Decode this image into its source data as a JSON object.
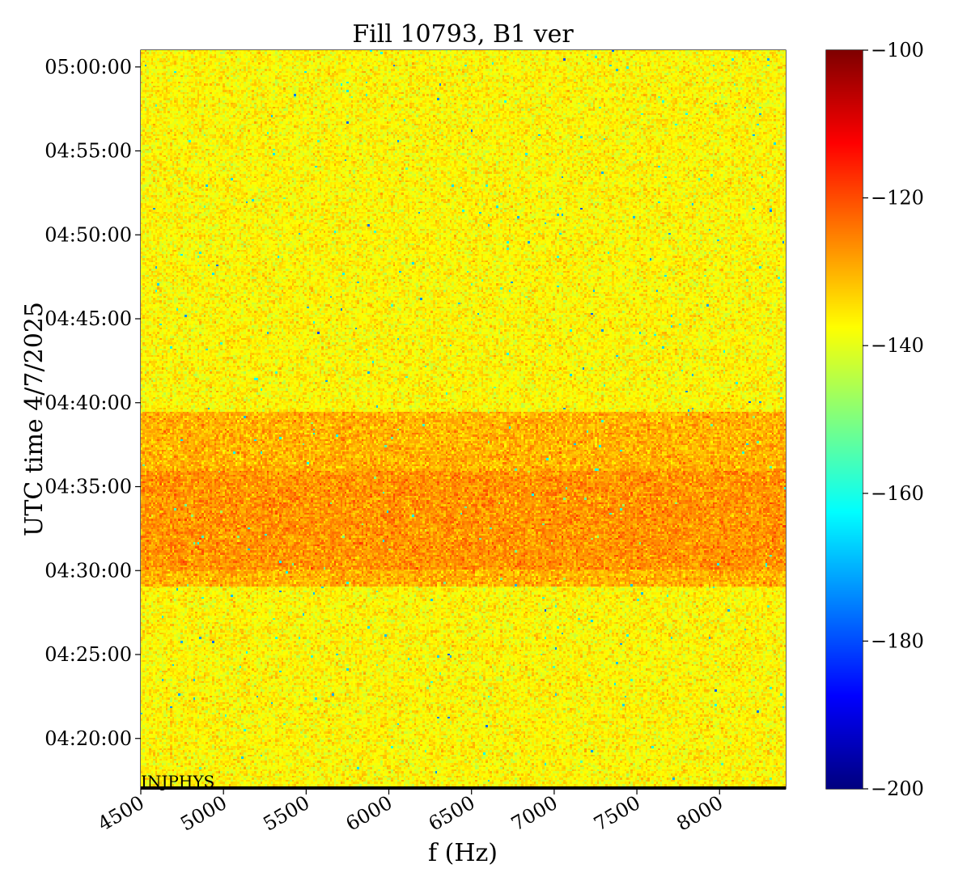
{
  "chart_data": {
    "type": "heatmap",
    "title": "Fill 10793, B1 ver",
    "xlabel": "f (Hz)",
    "ylabel": "UTC time 4/7/2025",
    "xlim": [
      4500,
      8400
    ],
    "ylim": [
      "04:17:00",
      "05:01:00"
    ],
    "x_ticks": [
      4500,
      5000,
      5500,
      6000,
      6500,
      7000,
      7500,
      8000
    ],
    "x_tick_labels": [
      "4500",
      "5000",
      "5500",
      "6000",
      "6500",
      "7000",
      "7500",
      "8000"
    ],
    "y_ticks": [
      "04:20:00",
      "04:25:00",
      "04:30:00",
      "04:35:00",
      "04:40:00",
      "04:45:00",
      "04:50:00",
      "04:55:00",
      "05:00:00"
    ],
    "y_tick_labels": [
      "04:20:00",
      "04:25:00",
      "04:30:00",
      "04:35:00",
      "04:40:00",
      "04:45:00",
      "04:50:00",
      "04:55:00",
      "05:00:00"
    ],
    "colorbar": {
      "colormap": "jet",
      "range": [
        -200,
        -100
      ],
      "ticks": [
        -100,
        -120,
        -140,
        -160,
        -180,
        -200
      ],
      "tick_labels": [
        "−100",
        "−120",
        "−140",
        "−160",
        "−180",
        "−200"
      ]
    },
    "background_level": -137,
    "regions": [
      {
        "from": "04:17:00",
        "to": "04:29:00",
        "level": -137
      },
      {
        "from": "04:29:00",
        "to": "04:30:00",
        "level": -130
      },
      {
        "from": "04:30:00",
        "to": "04:36:00",
        "level": -127
      },
      {
        "from": "04:36:00",
        "to": "04:39:30",
        "level": -130
      },
      {
        "from": "04:39:30",
        "to": "05:01:00",
        "level": -137
      }
    ],
    "annotation": {
      "text": "INJPHYS",
      "start": "04:17:00"
    }
  }
}
